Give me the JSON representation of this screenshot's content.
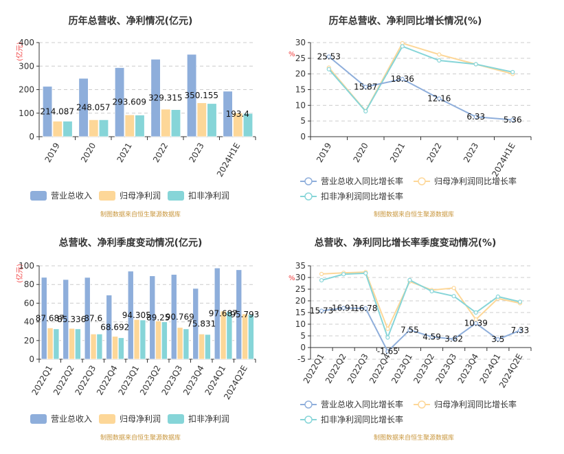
{
  "colors": {
    "revenue": "#8eaedb",
    "net_profit": "#fdd798",
    "deducted_profit": "#86d5d8",
    "watermark": "#c8963c",
    "unit": "#f03c3c"
  },
  "watermark": "制图数据来自恒生聚源数据库",
  "chart_data": [
    {
      "type": "bar",
      "title": "历年总营收、净利情况(亿元)",
      "ylabel": "(亿元)",
      "ylim": [
        0,
        400
      ],
      "yticks": [
        "0",
        "100",
        "200",
        "300",
        "400"
      ],
      "grid": true,
      "legend_position": "bottom",
      "categories": [
        "2019",
        "2020",
        "2021",
        "2022",
        "2023",
        "2024H1E"
      ],
      "series": [
        {
          "name": "营业总收入",
          "values": [
            214.087,
            248.057,
            293.609,
            329.315,
            350.155,
            193.4
          ],
          "labels": [
            "214.087",
            "248.057",
            "293.609",
            "329.315",
            "350.155",
            "193.4"
          ]
        },
        {
          "name": "归母净利润",
          "values": [
            66,
            72,
            93,
            117,
            144,
            101
          ]
        },
        {
          "name": "扣非净利润",
          "values": [
            66,
            72,
            92,
            115,
            141,
            99
          ]
        }
      ]
    },
    {
      "type": "line",
      "title": "历年总营收、净利同比增长情况(%)",
      "ylabel": "%",
      "ylim": [
        0,
        30
      ],
      "yticks": [
        "0",
        "5",
        "10",
        "15",
        "20",
        "25",
        "30"
      ],
      "grid": true,
      "legend_position": "bottom",
      "categories": [
        "2019",
        "2020",
        "2021",
        "2022",
        "2023",
        "2024H1E"
      ],
      "series": [
        {
          "name": "营业总收入同比增长率",
          "values": [
            25.53,
            15.87,
            18.36,
            12.16,
            6.33,
            5.36
          ],
          "labels": [
            "25.53",
            "15.87",
            "18.36",
            "12.16",
            "6.33",
            "5.36"
          ]
        },
        {
          "name": "归母净利润同比增长率",
          "values": [
            22,
            8.2,
            29.8,
            26.2,
            23.1,
            20
          ]
        },
        {
          "name": "扣非净利润同比增长率",
          "values": [
            21.5,
            8.1,
            28.8,
            24.3,
            23.1,
            20.6
          ]
        }
      ]
    },
    {
      "type": "bar",
      "title": "总营收、净利季度变动情况(亿元)",
      "ylabel": "(亿元)",
      "ylim": [
        0,
        100
      ],
      "yticks": [
        "0",
        "20",
        "40",
        "60",
        "80",
        "100"
      ],
      "grid": true,
      "legend_position": "bottom",
      "categories": [
        "2022Q1",
        "2022Q2",
        "2022Q3",
        "2022Q4",
        "2023Q1",
        "2023Q2",
        "2023Q3",
        "2023Q4",
        "2024Q1",
        "2024Q2E"
      ],
      "series": [
        {
          "name": "营业总收入",
          "values": [
            87.687,
            85.336,
            87.6,
            68.692,
            94.305,
            89.25,
            90.769,
            75.831,
            97.687,
            95.793
          ],
          "labels": [
            "87.687",
            "85.336",
            "87.6",
            "68.692",
            "94.305",
            "89.25",
            "90.769",
            "75.831",
            "97.687",
            "95.793"
          ]
        },
        {
          "name": "归母净利润",
          "values": [
            33.5,
            33,
            27,
            24.5,
            42.5,
            41,
            34,
            27,
            51.5,
            48.5
          ]
        },
        {
          "name": "扣非净利润",
          "values": [
            32.5,
            32.5,
            27,
            23,
            42,
            40,
            32.5,
            26.5,
            51,
            48
          ]
        }
      ]
    },
    {
      "type": "line",
      "title": "总营收、净利同比增长率季度变动情况(%)",
      "ylabel": "%",
      "ylim": [
        -5,
        35
      ],
      "yticks": [
        "-5",
        "0",
        "5",
        "10",
        "15",
        "20",
        "25",
        "30",
        "35"
      ],
      "grid": true,
      "legend_position": "bottom",
      "categories": [
        "2022Q1",
        "2022Q2",
        "2022Q3",
        "2022Q4",
        "2023Q1",
        "2023Q2",
        "2023Q3",
        "2023Q4",
        "2024Q1",
        "2024Q2E"
      ],
      "series": [
        {
          "name": "营业总收入同比增长率",
          "values": [
            15.73,
            16.91,
            16.78,
            -1.65,
            7.55,
            4.59,
            3.62,
            10.39,
            3.5,
            7.33
          ],
          "labels": [
            "15.73",
            "16.91",
            "16.78",
            "-1.65",
            "7.55",
            "4.59",
            "3.62",
            "10.39",
            "3.5",
            "7.33"
          ]
        },
        {
          "name": "归母净利润同比增长率",
          "values": [
            31.5,
            32,
            32.3,
            8,
            28.3,
            24.6,
            25.5,
            12,
            21,
            19
          ]
        },
        {
          "name": "扣非净利润同比增长率",
          "values": [
            28.8,
            31.4,
            31.8,
            4.3,
            28.9,
            24.1,
            22,
            15,
            21.8,
            19.6
          ]
        }
      ]
    }
  ]
}
